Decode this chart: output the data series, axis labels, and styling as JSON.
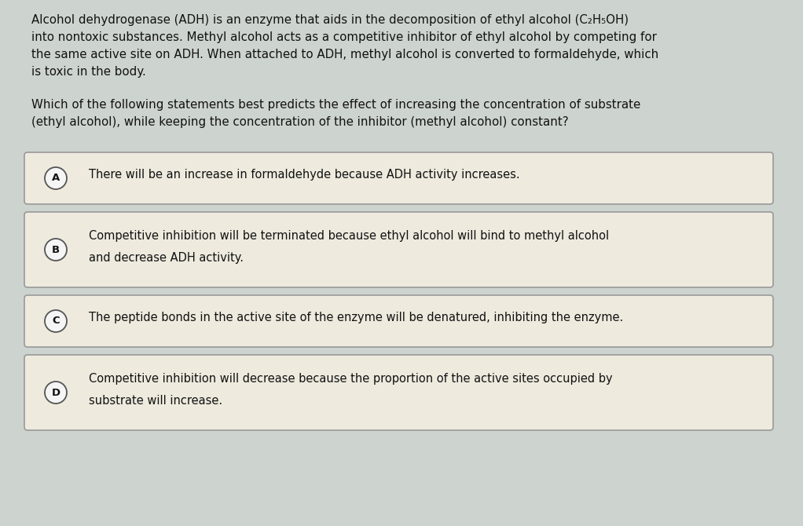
{
  "bg_color": "#cdd4d0",
  "passage": [
    "Alcohol dehydrogenase (ADH) is an enzyme that aids in the decomposition of ethyl alcohol (C₂H₅OH)",
    "into nontoxic substances. Methyl alcohol acts as a competitive inhibitor of ethyl alcohol by competing for",
    "the same active site on ADH. When attached to ADH, methyl alcohol is converted to formaldehyde, which",
    "is toxic in the body."
  ],
  "question": [
    "Which of the following statements best predicts the effect of increasing the concentration of substrate",
    "(ethyl alcohol), while keeping the concentration of the inhibitor (methyl alcohol) constant?"
  ],
  "options": [
    {
      "label": "A",
      "lines": [
        "There will be an increase in formaldehyde because ADH activity increases."
      ],
      "nlines": 1
    },
    {
      "label": "B",
      "lines": [
        "Competitive inhibition will be terminated because ethyl alcohol will bind to methyl alcohol",
        "and decrease ADH activity."
      ],
      "nlines": 2
    },
    {
      "label": "C",
      "lines": [
        "The peptide bonds in the active site of the enzyme will be denatured, inhibiting the enzyme."
      ],
      "nlines": 1
    },
    {
      "label": "D",
      "lines": [
        "Competitive inhibition will decrease because the proportion of the active sites occupied by",
        "substrate will increase."
      ],
      "nlines": 2
    }
  ],
  "option_box_color": "#eeeade",
  "option_border_color": "#999999",
  "label_circle_color": "#f5f5f5",
  "label_circle_border": "#555555",
  "text_color": "#111111",
  "passage_fontsize": 10.8,
  "question_fontsize": 10.8,
  "option_fontsize": 10.5,
  "label_fontsize": 9.5
}
